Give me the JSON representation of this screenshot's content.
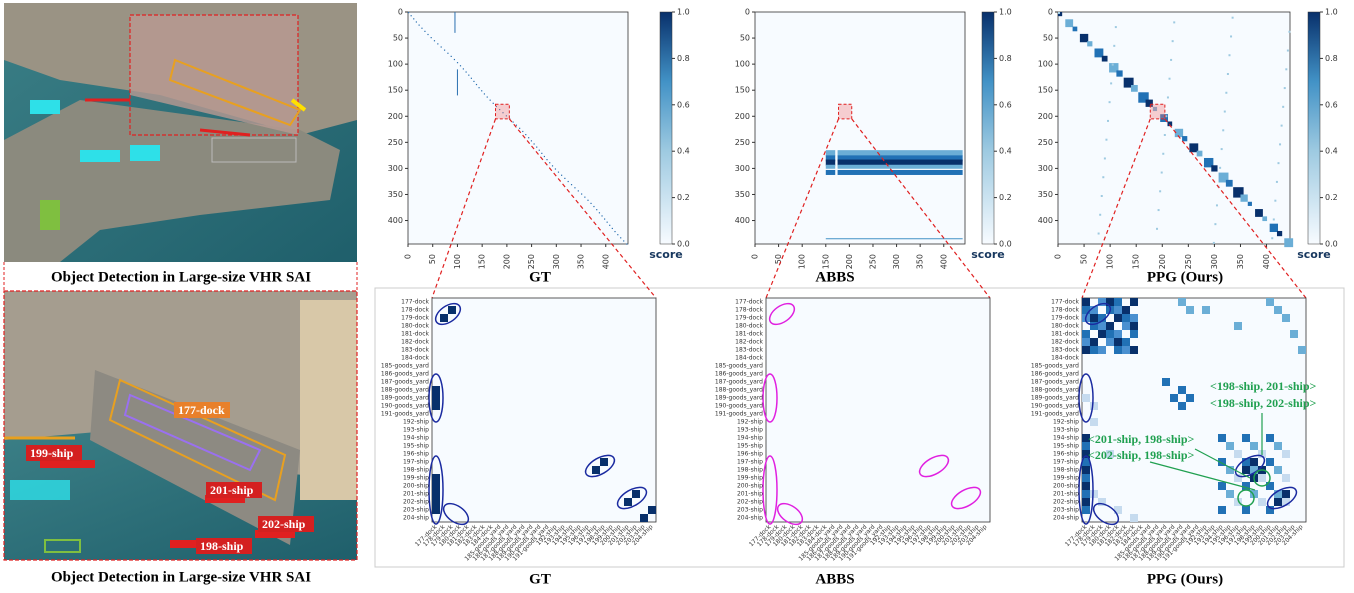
{
  "left": {
    "caption_top": "Object Detection in Large-size VHR SAI",
    "caption_bottom": "Object Detection in Large-size VHR SAI",
    "image_labels": [
      "177-dock",
      "199-ship",
      "201-ship",
      "202-ship",
      "198-ship"
    ]
  },
  "top_panels": {
    "captions": [
      "GT",
      "ABBS",
      "PPG (Ours)"
    ],
    "axis_ticks": [
      0,
      50,
      100,
      150,
      200,
      250,
      300,
      350,
      400
    ],
    "colorbar_ticks": [
      "0.0",
      "0.2",
      "0.4",
      "0.6",
      "0.8",
      "1.0"
    ],
    "colorbar_label": "score"
  },
  "bottom_panels": {
    "captions": [
      "GT",
      "ABBS",
      "PPG (Ours)"
    ],
    "matrix_labels": [
      "177-dock",
      "178-dock",
      "179-dock",
      "180-dock",
      "181-dock",
      "182-dock",
      "183-dock",
      "184-dock",
      "185-goods_yard",
      "186-goods_yard",
      "187-goods_yard",
      "188-goods_yard",
      "189-goods_yard",
      "190-goods_yard",
      "191-goods_yard",
      "192-ship",
      "193-ship",
      "194-ship",
      "195-ship",
      "196-ship",
      "197-ship",
      "198-ship",
      "199-ship",
      "200-ship",
      "201-ship",
      "202-ship",
      "203-ship",
      "204-ship"
    ],
    "annotations": [
      "<198-ship, 201-ship>",
      "<198-ship, 202-ship>",
      "<201-ship, 198-ship>",
      "<202-ship, 198-ship>"
    ]
  }
}
